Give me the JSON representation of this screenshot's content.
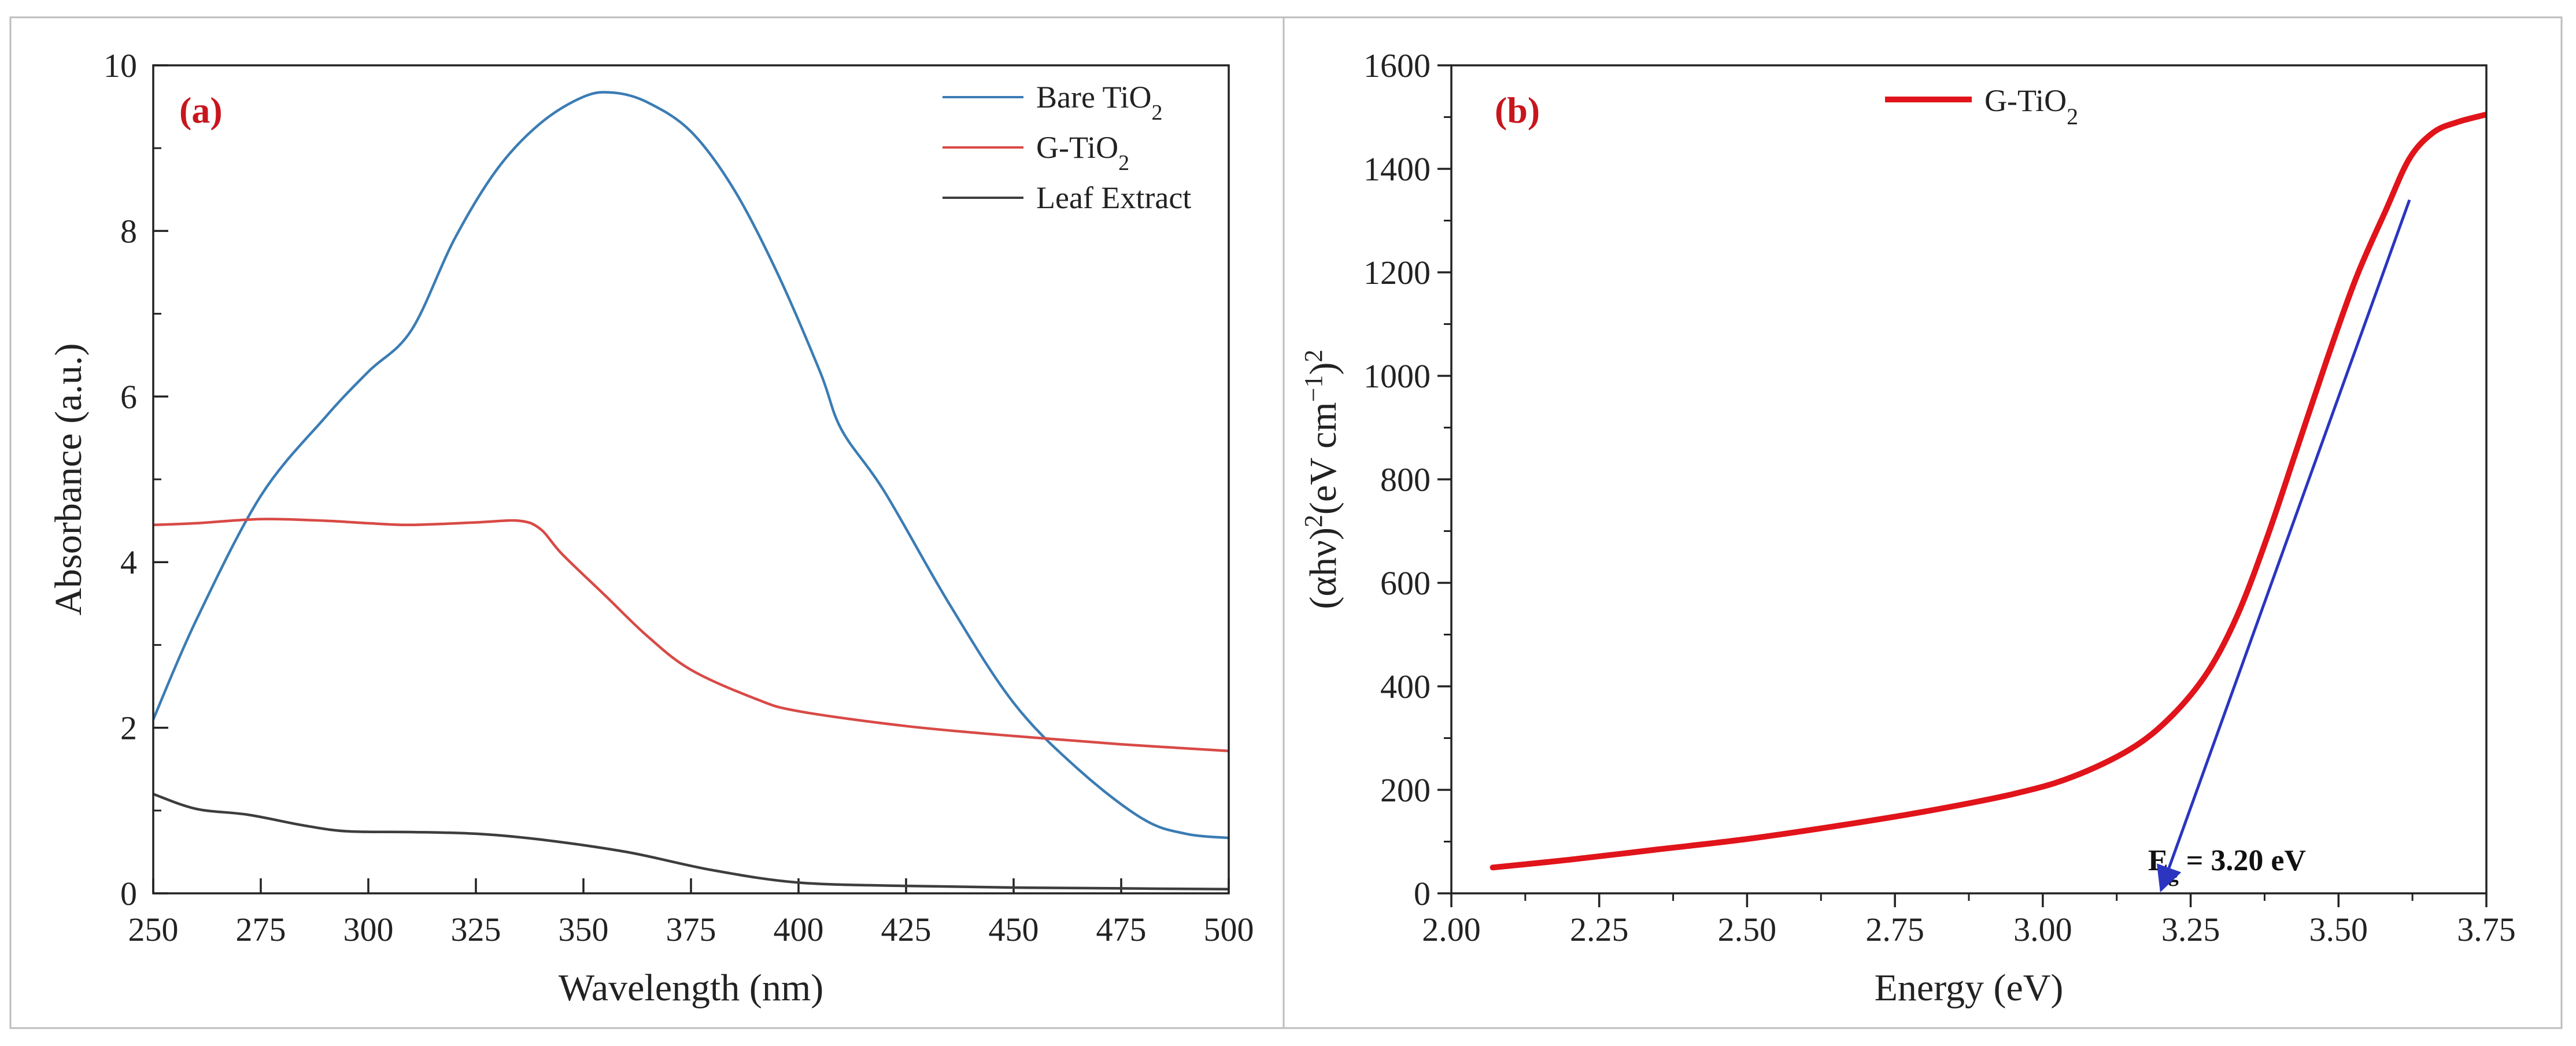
{
  "chart_data": [
    {
      "type": "line",
      "panel_label": "(a)",
      "title": "",
      "xlabel": "Wavelength (nm)",
      "ylabel": "Absorbance (a.u.)",
      "xlim": [
        250,
        500
      ],
      "ylim": [
        0,
        10
      ],
      "xticks": [
        250,
        275,
        300,
        325,
        350,
        375,
        400,
        425,
        450,
        475,
        500
      ],
      "yticks": [
        0,
        2,
        4,
        6,
        8,
        10
      ],
      "legend_position": "top-right",
      "series": [
        {
          "name": "Bare TiO2",
          "label_main": "Bare TiO",
          "label_sub": "2",
          "color": "#3b7cb4",
          "x": [
            250,
            260,
            275,
            290,
            300,
            310,
            320,
            330,
            340,
            350,
            357,
            365,
            375,
            385,
            395,
            405,
            410,
            420,
            435,
            450,
            465,
            480,
            490,
            500
          ],
          "y": [
            2.1,
            3.3,
            4.8,
            5.75,
            6.3,
            6.8,
            7.9,
            8.75,
            9.3,
            9.62,
            9.67,
            9.55,
            9.2,
            8.5,
            7.5,
            6.3,
            5.6,
            4.85,
            3.5,
            2.3,
            1.5,
            0.9,
            0.72,
            0.67
          ]
        },
        {
          "name": "G-TiO2",
          "label_main": "G-TiO",
          "label_sub": "2",
          "color": "#d84a46",
          "x": [
            250,
            260,
            275,
            290,
            300,
            310,
            325,
            335,
            340,
            345,
            355,
            365,
            375,
            390,
            400,
            425,
            450,
            475,
            500
          ],
          "y": [
            4.45,
            4.47,
            4.52,
            4.5,
            4.47,
            4.45,
            4.48,
            4.5,
            4.4,
            4.1,
            3.6,
            3.1,
            2.7,
            2.35,
            2.2,
            2.02,
            1.9,
            1.8,
            1.72
          ]
        },
        {
          "name": "Leaf Extract",
          "label_main": "Leaf Extract",
          "label_sub": "",
          "color": "#3d3d3d",
          "x": [
            250,
            260,
            272,
            285,
            295,
            310,
            325,
            340,
            360,
            380,
            400,
            425,
            450,
            475,
            500
          ],
          "y": [
            1.2,
            1.02,
            0.95,
            0.82,
            0.75,
            0.74,
            0.72,
            0.65,
            0.5,
            0.28,
            0.13,
            0.09,
            0.07,
            0.06,
            0.05
          ]
        }
      ]
    },
    {
      "type": "line",
      "panel_label": "(b)",
      "title": "",
      "xlabel": "Energy (eV)",
      "ylabel": "(αhν)²(eV cm⁻¹)²",
      "ylabel_parts": {
        "p1": "(αhν)",
        "s1": "2",
        "p2": "(eV cm",
        "s2": "−1",
        "p3": ")",
        "s3": "2"
      },
      "xlim": [
        2.0,
        3.75
      ],
      "ylim": [
        0,
        1600
      ],
      "xticks": [
        "2.00",
        "2.25",
        "2.50",
        "2.75",
        "3.00",
        "3.25",
        "3.50",
        "3.75"
      ],
      "yticks": [
        0,
        200,
        400,
        600,
        800,
        1000,
        1200,
        1400,
        1600
      ],
      "legend_position": "top-left",
      "series": [
        {
          "name": "G-TiO2",
          "label_main": "G-TiO",
          "label_sub": "2",
          "color": "#e0141a",
          "x": [
            2.07,
            2.2,
            2.35,
            2.5,
            2.65,
            2.8,
            2.95,
            3.05,
            3.15,
            3.22,
            3.28,
            3.33,
            3.38,
            3.43,
            3.48,
            3.53,
            3.58,
            3.62,
            3.66,
            3.7,
            3.75
          ],
          "y": [
            50,
            65,
            85,
            105,
            130,
            158,
            192,
            225,
            280,
            345,
            430,
            540,
            690,
            860,
            1030,
            1190,
            1320,
            1420,
            1470,
            1490,
            1505
          ]
        }
      ],
      "tangent_line": {
        "color": "#2b35c0",
        "x": [
          3.2,
          3.62
        ],
        "y": [
          0,
          1340
        ]
      },
      "annotation": {
        "main": "E",
        "sub": "g",
        "rest": " = 3.20 eV",
        "x": 3.2,
        "y": 0
      }
    }
  ]
}
